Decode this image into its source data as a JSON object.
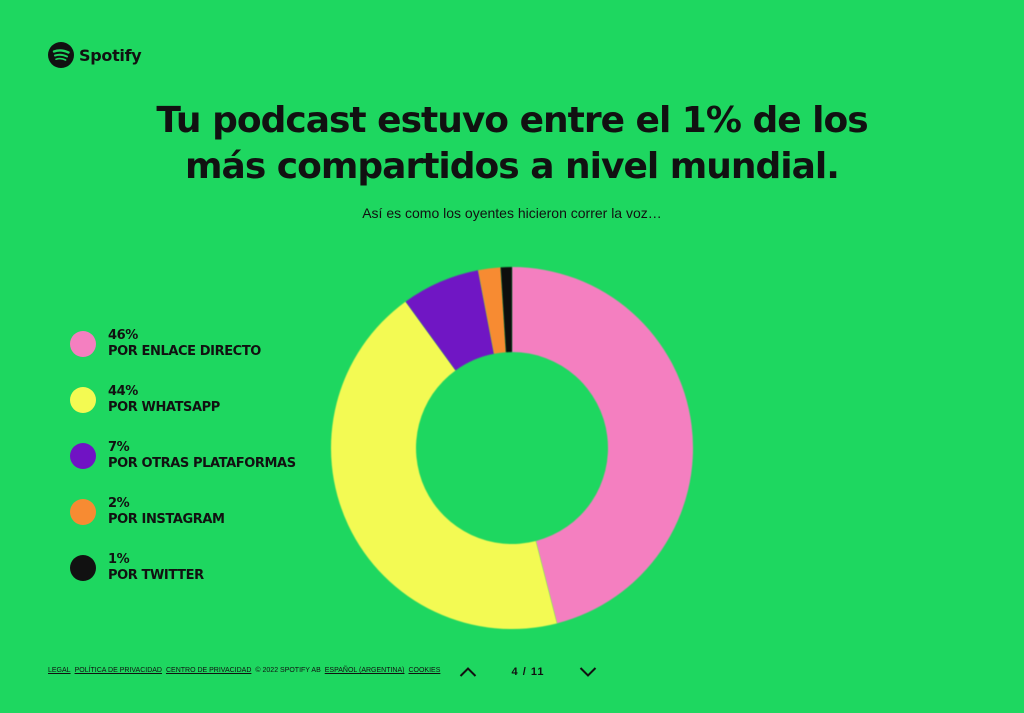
{
  "brand": {
    "name": "Spotify",
    "icon": "spotify-logo-icon"
  },
  "header": {
    "title_line1": "Tu podcast estuvo entre el 1% de los",
    "title_line2": "más compartidos a nivel mundial.",
    "subtitle": "Así es como los oyentes hicieron correr la voz…"
  },
  "chart_data": {
    "type": "pie",
    "donut": true,
    "legend_position": "left",
    "slices": [
      {
        "label": "POR ENLACE DIRECTO",
        "value": 46,
        "value_label": "46%",
        "color": "#f47fc0"
      },
      {
        "label": "POR WHATSAPP",
        "value": 44,
        "value_label": "44%",
        "color": "#f3fa52"
      },
      {
        "label": "POR OTRAS PLATAFORMAS",
        "value": 7,
        "value_label": "7%",
        "color": "#7013c4"
      },
      {
        "label": "POR INSTAGRAM",
        "value": 2,
        "value_label": "2%",
        "color": "#f78b32"
      },
      {
        "label": "POR TWITTER",
        "value": 1,
        "value_label": "1%",
        "color": "#111111"
      }
    ]
  },
  "footer": {
    "links": [
      "LEGAL",
      "POLÍTICA DE PRIVACIDAD",
      "CENTRO DE PRIVACIDAD"
    ],
    "copyright": "© 2022 SPOTIFY AB",
    "language": "ESPAÑOL (ARGENTINA)",
    "cookies": "COOKIES"
  },
  "pager": {
    "label": "4 / 11",
    "prev_icon": "chevron-up-icon",
    "next_icon": "chevron-down-icon"
  },
  "colors": {
    "background": "#1ed760",
    "text": "#111111"
  }
}
